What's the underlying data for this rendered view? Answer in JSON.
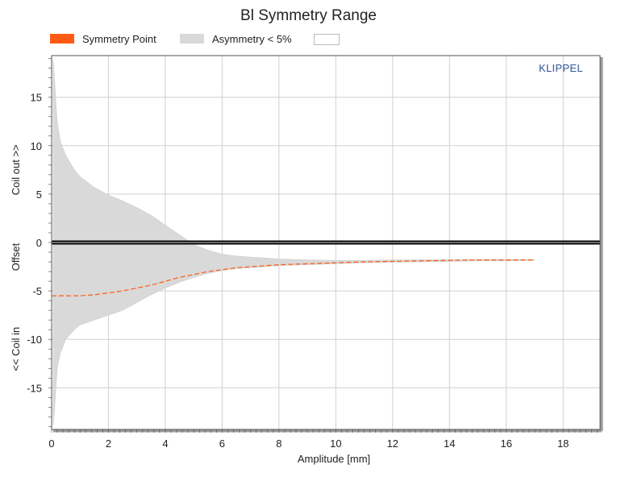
{
  "chart_data": {
    "type": "area",
    "title": "Bl Symmetry Range",
    "xlabel": "Amplitude [mm]",
    "ylabel_parts": [
      "<< Coil in",
      "Offset",
      "Coil out >>"
    ],
    "watermark": "KLIPPEL",
    "xlim": [
      0,
      19.3
    ],
    "ylim": [
      -19.3,
      19.3
    ],
    "xticks": [
      0,
      2,
      4,
      6,
      8,
      10,
      12,
      14,
      16,
      18
    ],
    "yticks": [
      15,
      10,
      5,
      0,
      -5,
      -10,
      -15
    ],
    "grid": true,
    "legend_position": "top",
    "legend": [
      {
        "label": "Symmetry Point",
        "color": "#ff5a14",
        "kind": "fill"
      },
      {
        "label": "Asymmetry < 5%",
        "color": "#d9d9d9",
        "kind": "fill"
      },
      {
        "label": "",
        "color": "#ffffff",
        "kind": "fill"
      }
    ],
    "series": [
      {
        "name": "Symmetry Point",
        "color": "#ff5a14",
        "style": "dashed",
        "x": [
          0,
          0.5,
          1,
          1.5,
          2,
          2.5,
          3,
          3.5,
          4,
          4.5,
          5,
          5.5,
          6,
          6.5,
          7,
          7.5,
          8,
          9,
          10,
          11,
          12,
          13,
          14,
          15,
          16,
          17
        ],
        "y": [
          -5.5,
          -5.5,
          -5.5,
          -5.4,
          -5.2,
          -5.0,
          -4.7,
          -4.4,
          -4.0,
          -3.6,
          -3.3,
          -3.0,
          -2.8,
          -2.6,
          -2.5,
          -2.4,
          -2.3,
          -2.2,
          -2.1,
          -2.0,
          -1.95,
          -1.9,
          -1.85,
          -1.8,
          -1.8,
          -1.8
        ]
      },
      {
        "name": "Asymmetry < 5%",
        "color": "#d9d9d9",
        "style": "band",
        "x": [
          0.05,
          0.1,
          0.15,
          0.2,
          0.3,
          0.5,
          0.8,
          1,
          1.5,
          2,
          2.5,
          3,
          3.5,
          4,
          4.5,
          5,
          5.5,
          6,
          6.5,
          7,
          7.5,
          8,
          9,
          10,
          11,
          12,
          13,
          14,
          15,
          16,
          17
        ],
        "upper": [
          19,
          17,
          14.5,
          12.5,
          10.5,
          9,
          7.5,
          6.8,
          5.7,
          4.9,
          4.3,
          3.6,
          2.8,
          1.8,
          0.8,
          -0.2,
          -0.8,
          -1.2,
          -1.4,
          -1.5,
          -1.6,
          -1.7,
          -1.8,
          -1.85,
          -1.85,
          -1.8,
          -1.78,
          -1.75,
          -1.75,
          -1.75,
          -1.75
        ],
        "lower": [
          -19,
          -17.5,
          -15,
          -13,
          -11.5,
          -10,
          -9,
          -8.5,
          -8,
          -7.5,
          -7,
          -6.2,
          -5.4,
          -4.7,
          -4.1,
          -3.6,
          -3.2,
          -2.9,
          -2.7,
          -2.6,
          -2.5,
          -2.4,
          -2.3,
          -2.2,
          -2.1,
          -2.05,
          -2.0,
          -1.95,
          -1.9,
          -1.9,
          -1.85
        ]
      }
    ]
  }
}
